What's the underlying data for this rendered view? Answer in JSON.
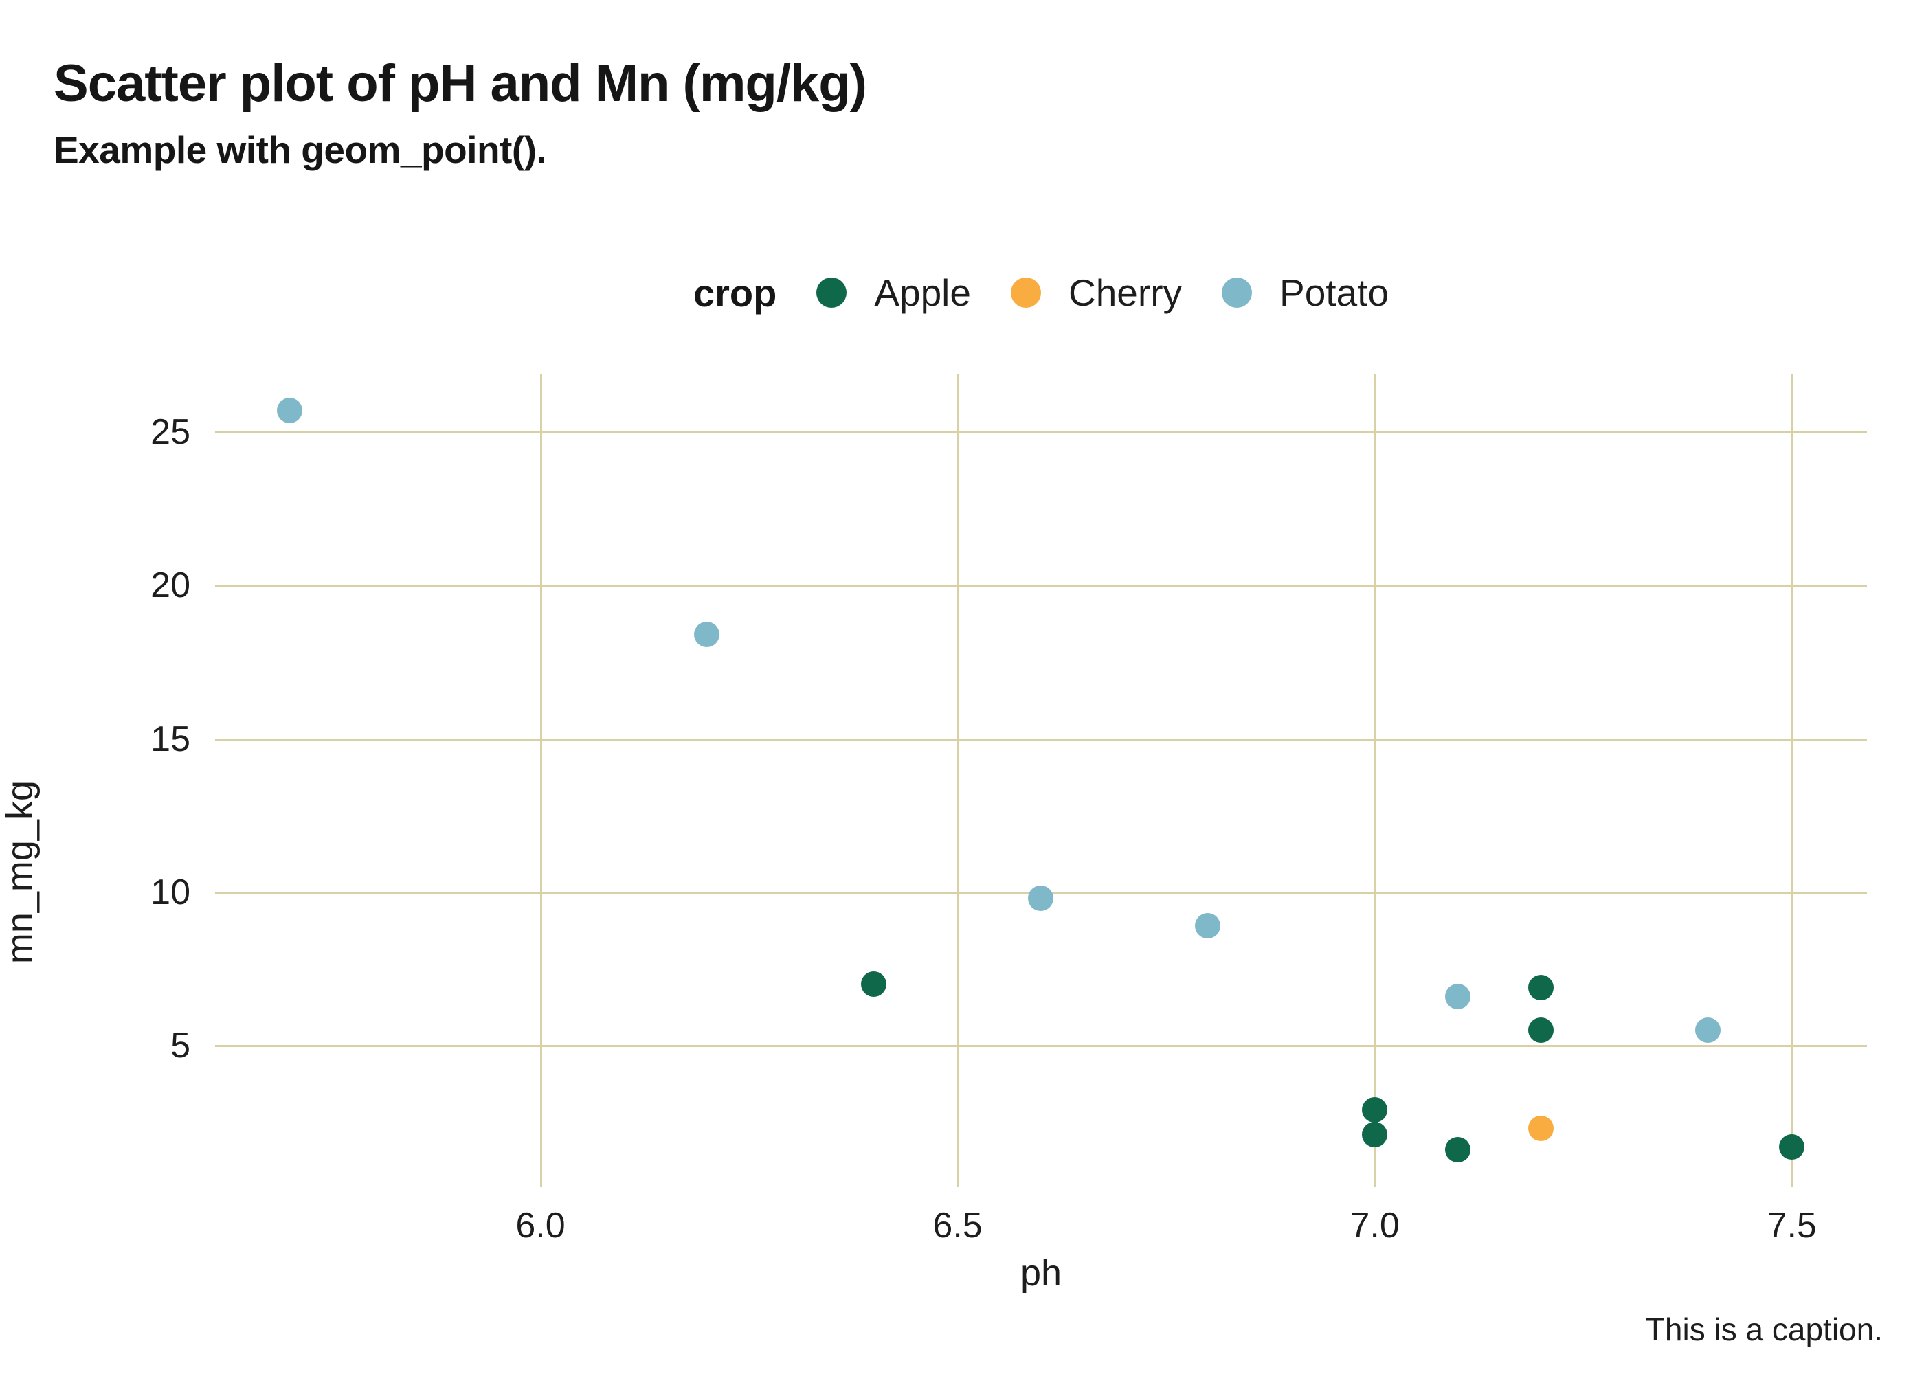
{
  "chart_data": {
    "type": "scatter",
    "title": "Scatter plot of pH and Mn (mg/kg)",
    "subtitle": "Example with geom_point().",
    "caption": "This is a caption.",
    "xlabel": "ph",
    "ylabel": "mn_mg_kg",
    "legend_title": "crop",
    "legend_position": "top",
    "grid": true,
    "xlim": [
      5.61,
      7.59
    ],
    "ylim": [
      0.4,
      26.9
    ],
    "x_ticks": [
      6.0,
      6.5,
      7.0,
      7.5
    ],
    "x_tick_labels": [
      "6.0",
      "6.5",
      "7.0",
      "7.5"
    ],
    "y_ticks": [
      5,
      10,
      15,
      20,
      25
    ],
    "y_tick_labels": [
      "5",
      "10",
      "15",
      "20",
      "25"
    ],
    "series": [
      {
        "name": "Apple",
        "color": "#0e6849",
        "points": [
          [
            6.4,
            7.0
          ],
          [
            7.2,
            6.9
          ],
          [
            7.2,
            5.5
          ],
          [
            7.0,
            2.9
          ],
          [
            7.0,
            2.1
          ],
          [
            7.1,
            1.6
          ],
          [
            7.5,
            1.7
          ]
        ]
      },
      {
        "name": "Cherry",
        "color": "#f9ad41",
        "points": [
          [
            7.2,
            2.3
          ]
        ]
      },
      {
        "name": "Potato",
        "color": "#7fb9c9",
        "points": [
          [
            5.7,
            25.7
          ],
          [
            6.2,
            18.4
          ],
          [
            6.6,
            9.8
          ],
          [
            6.8,
            8.9
          ],
          [
            7.1,
            6.6
          ],
          [
            7.4,
            5.5
          ]
        ]
      }
    ],
    "colors": {
      "gridline": "#d8d1a6",
      "text": "#1d1d1d",
      "background": "#ffffff"
    }
  }
}
